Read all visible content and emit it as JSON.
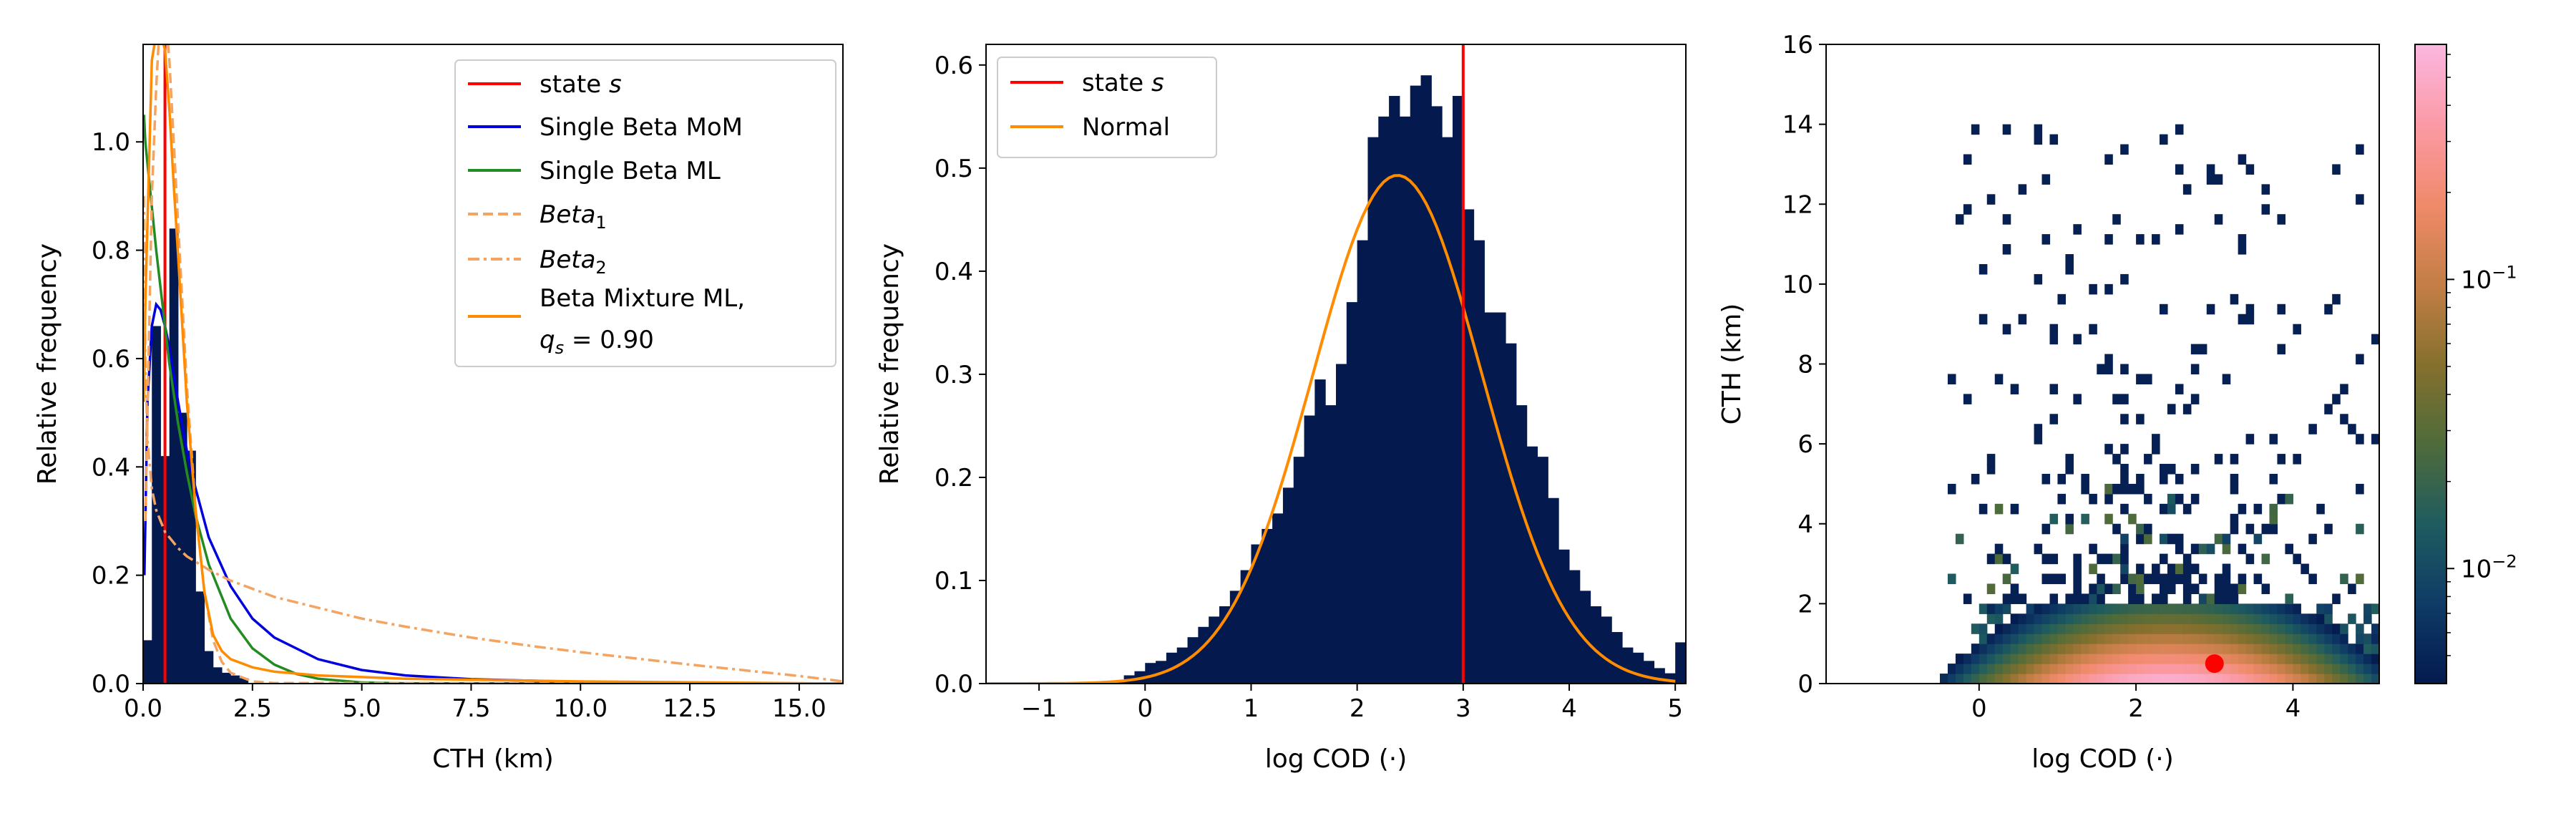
{
  "chart_data": [
    {
      "type": "histogram",
      "xlabel": "CTH (km)",
      "ylabel": "Relative frequency",
      "xlim": [
        0,
        16
      ],
      "ylim": [
        0,
        1.18
      ],
      "xticks": [
        "0.0",
        "2.5",
        "5.0",
        "7.5",
        "10.0",
        "12.5",
        "15.0"
      ],
      "xtick_values": [
        0,
        2.5,
        5,
        7.5,
        10,
        12.5,
        15
      ],
      "yticks": [
        "0.0",
        "0.2",
        "0.4",
        "0.6",
        "0.8",
        "1.0"
      ],
      "ytick_values": [
        0,
        0.2,
        0.4,
        0.6,
        0.8,
        1.0
      ],
      "bin_width": 0.2,
      "histogram": [
        {
          "x": 0.0,
          "h": 0.08
        },
        {
          "x": 0.2,
          "h": 0.66
        },
        {
          "x": 0.4,
          "h": 0.42
        },
        {
          "x": 0.6,
          "h": 0.84
        },
        {
          "x": 0.8,
          "h": 0.5
        },
        {
          "x": 1.0,
          "h": 0.43
        },
        {
          "x": 1.2,
          "h": 0.17
        },
        {
          "x": 1.4,
          "h": 0.06
        },
        {
          "x": 1.6,
          "h": 0.03
        },
        {
          "x": 1.8,
          "h": 0.02
        },
        {
          "x": 2.0,
          "h": 0.015
        },
        {
          "x": 2.2,
          "h": 0.01
        }
      ],
      "state_s": 0.5,
      "series": [
        {
          "name": "Single Beta MoM",
          "style": "solid",
          "color": "#0000dd",
          "x": [
            0.03,
            0.1,
            0.2,
            0.3,
            0.4,
            0.5,
            0.6,
            0.7,
            0.8,
            1.0,
            1.2,
            1.5,
            2.0,
            2.5,
            3.0,
            4.0,
            5.0,
            6.0,
            7.5,
            10.0,
            12.5,
            15.0,
            16.0
          ],
          "y": [
            0.2,
            0.52,
            0.66,
            0.7,
            0.69,
            0.66,
            0.62,
            0.57,
            0.52,
            0.43,
            0.36,
            0.27,
            0.18,
            0.12,
            0.085,
            0.045,
            0.025,
            0.015,
            0.008,
            0.003,
            0.001,
            0.0003,
            0.0
          ]
        },
        {
          "name": "Single Beta ML",
          "style": "solid",
          "color": "#228b22",
          "x": [
            0.02,
            0.05,
            0.1,
            0.2,
            0.3,
            0.4,
            0.5,
            0.6,
            0.8,
            1.0,
            1.2,
            1.5,
            2.0,
            2.5,
            3.0,
            3.5,
            4.0,
            5.0,
            6.0,
            16.0
          ],
          "y": [
            1.05,
            1.0,
            0.96,
            0.88,
            0.8,
            0.73,
            0.66,
            0.59,
            0.48,
            0.39,
            0.31,
            0.22,
            0.12,
            0.065,
            0.035,
            0.018,
            0.009,
            0.002,
            0.0005,
            0.0
          ]
        },
        {
          "name": "Beta_1",
          "style": "dashed",
          "color": "#f4a460",
          "x": [
            0.05,
            0.2,
            0.3,
            0.4,
            0.5,
            0.6,
            0.7,
            0.8,
            1.0,
            1.2,
            1.4,
            1.6,
            1.8,
            2.0,
            2.5,
            3.0,
            16.0
          ],
          "y": [
            0.3,
            0.9,
            1.1,
            1.25,
            1.25,
            1.15,
            1.0,
            0.85,
            0.55,
            0.32,
            0.17,
            0.08,
            0.04,
            0.02,
            0.004,
            0.001,
            0.0
          ]
        },
        {
          "name": "Beta_2",
          "style": "dashdot",
          "color": "#f4a460",
          "x": [
            0.02,
            0.05,
            0.1,
            0.2,
            0.3,
            0.5,
            0.8,
            1.0,
            1.5,
            2.0,
            3.0,
            4.0,
            5.0,
            6.0,
            7.5,
            9.0,
            10.0,
            12.5,
            15.0,
            16.0
          ],
          "y": [
            0.9,
            0.6,
            0.45,
            0.36,
            0.32,
            0.28,
            0.25,
            0.235,
            0.21,
            0.19,
            0.16,
            0.14,
            0.12,
            0.105,
            0.085,
            0.068,
            0.058,
            0.035,
            0.014,
            0.004
          ]
        },
        {
          "name": "Beta Mixture ML",
          "style": "solid",
          "color": "#ff8c00",
          "x": [
            0.02,
            0.05,
            0.1,
            0.2,
            0.3,
            0.4,
            0.5,
            0.6,
            0.7,
            0.8,
            1.0,
            1.2,
            1.4,
            1.6,
            1.8,
            2.0,
            2.5,
            3.0,
            4.0,
            6.0,
            10.0,
            16.0
          ],
          "y": [
            0.52,
            0.7,
            0.85,
            1.15,
            1.2,
            1.2,
            1.17,
            1.06,
            0.92,
            0.79,
            0.52,
            0.32,
            0.17,
            0.09,
            0.06,
            0.045,
            0.03,
            0.022,
            0.015,
            0.009,
            0.004,
            0.0
          ]
        }
      ],
      "legend": {
        "position": "top-right",
        "entries": [
          {
            "label": "state s",
            "color": "#ff0000",
            "style": "solid"
          },
          {
            "label": "Single Beta MoM",
            "color": "#0000dd",
            "style": "solid"
          },
          {
            "label": "Single Beta ML",
            "color": "#228b22",
            "style": "solid"
          },
          {
            "label": "Beta1",
            "color": "#f4a460",
            "style": "dashed"
          },
          {
            "label": "Beta2",
            "color": "#f4a460",
            "style": "dashdot"
          },
          {
            "label": "Beta Mixture ML,",
            "label2": "qs = 0.90",
            "color": "#ff8c00",
            "style": "solid"
          }
        ]
      }
    },
    {
      "type": "histogram",
      "xlabel": "log COD (·)",
      "ylabel": "Relative frequency",
      "xlim": [
        -1.5,
        5.1
      ],
      "ylim": [
        0,
        0.62
      ],
      "xticks": [
        "−1",
        "0",
        "1",
        "2",
        "3",
        "4",
        "5"
      ],
      "xtick_values": [
        -1,
        0,
        1,
        2,
        3,
        4,
        5
      ],
      "yticks": [
        "0.0",
        "0.1",
        "0.2",
        "0.3",
        "0.4",
        "0.5",
        "0.6"
      ],
      "ytick_values": [
        0,
        0.1,
        0.2,
        0.3,
        0.4,
        0.5,
        0.6
      ],
      "bin_width": 0.1,
      "bin_start": -0.3,
      "histogram": [
        0.002,
        0.008,
        0.012,
        0.02,
        0.022,
        0.03,
        0.035,
        0.045,
        0.055,
        0.065,
        0.075,
        0.09,
        0.11,
        0.135,
        0.15,
        0.165,
        0.19,
        0.22,
        0.26,
        0.295,
        0.27,
        0.31,
        0.37,
        0.43,
        0.53,
        0.55,
        0.57,
        0.55,
        0.58,
        0.59,
        0.56,
        0.53,
        0.57,
        0.46,
        0.43,
        0.36,
        0.36,
        0.33,
        0.27,
        0.23,
        0.22,
        0.18,
        0.13,
        0.11,
        0.09,
        0.075,
        0.065,
        0.05,
        0.035,
        0.03,
        0.022,
        0.015,
        0.01,
        0.04
      ],
      "state_s": 3.0,
      "normal": {
        "mean": 2.38,
        "sd": 0.8,
        "peak": 0.493
      },
      "legend": {
        "position": "top-left",
        "entries": [
          {
            "label": "state s",
            "color": "#ff0000",
            "style": "solid"
          },
          {
            "label": "Normal",
            "color": "#ff8c00",
            "style": "solid"
          }
        ]
      }
    },
    {
      "type": "heatmap",
      "xlabel": "log COD (·)",
      "ylabel": "CTH (km)",
      "xlim": [
        -1.95,
        5.1
      ],
      "ylim": [
        0,
        16
      ],
      "xticks": [
        "0",
        "2",
        "4"
      ],
      "xtick_values": [
        0,
        2,
        4
      ],
      "yticks": [
        "0",
        "2",
        "4",
        "6",
        "8",
        "10",
        "12",
        "14",
        "16"
      ],
      "ytick_values": [
        0,
        2,
        4,
        6,
        8,
        10,
        12,
        14,
        16
      ],
      "cell_width": 0.1,
      "cell_height": 0.25,
      "state_point": {
        "x": 3.0,
        "y": 0.5
      },
      "colorbar": {
        "scale": "log",
        "min": 0.004,
        "max": 0.65,
        "ticks": [
          "10−1",
          "10−2"
        ],
        "tick_values": [
          0.1,
          0.01
        ],
        "colormap": [
          "#041a4f",
          "#0f3b66",
          "#1f5c5f",
          "#4f6b3a",
          "#86702e",
          "#c47e46",
          "#f08a6b",
          "#fb9aa6",
          "#fbb7e0"
        ]
      }
    }
  ]
}
